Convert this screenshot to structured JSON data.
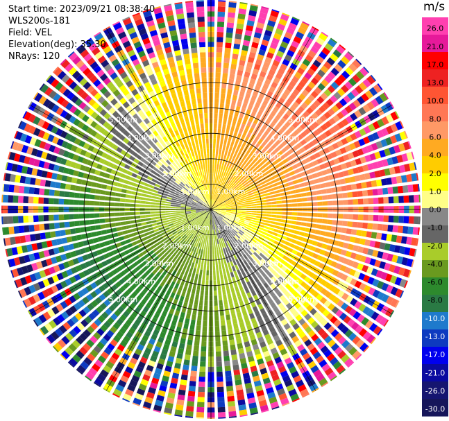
{
  "info": {
    "start_time": "Start time: 2023/09/21 08:38:40",
    "station": "WLS200s-181",
    "field": "Field: VEL",
    "elevation": "Elevation(deg): 35.30",
    "nrays": "NRays: 120"
  },
  "colorbar": {
    "unit": "m/s",
    "ticks": [
      "26.0",
      "21.0",
      "17.0",
      "13.0",
      "10.0",
      "8.0",
      "6.0",
      "4.0",
      "2.0",
      "1.0",
      "0.0",
      "-1.0",
      "-2.0",
      "-4.0",
      "-6.0",
      "-8.0",
      "-10.0",
      "-13.0",
      "-17.0",
      "-21.0",
      "-26.0",
      "-30.0"
    ],
    "colors": [
      "#ff3fb0",
      "#e6199a",
      "#ff0000",
      "#ee2222",
      "#ff5533",
      "#ff7755",
      "#ff9966",
      "#ffaa22",
      "#ffcc00",
      "#ffff00",
      "#fffe88",
      "#888888",
      "#666666",
      "#a9cc2a",
      "#6a9a1f",
      "#2d8a2d",
      "#2a7a44",
      "#1e7acc",
      "#0d3ac0",
      "#0000ee",
      "#0a0aa0",
      "#151570",
      "#16165a"
    ]
  },
  "chart_data": {
    "type": "ppi",
    "title": "WLS200s-181 VEL",
    "rays": 120,
    "range_rings_km": [
      1.0,
      2.0,
      3.0,
      4.0,
      5.0
    ],
    "range_labels": [
      "1.00km",
      "2.00km",
      "3.00km",
      "4.00km",
      "5.00km"
    ],
    "max_range_km": 5.0,
    "value_range": [
      -30.0,
      26.0
    ],
    "unit": "m/s",
    "description_axes": [
      "east-west",
      "north-south"
    ]
  }
}
